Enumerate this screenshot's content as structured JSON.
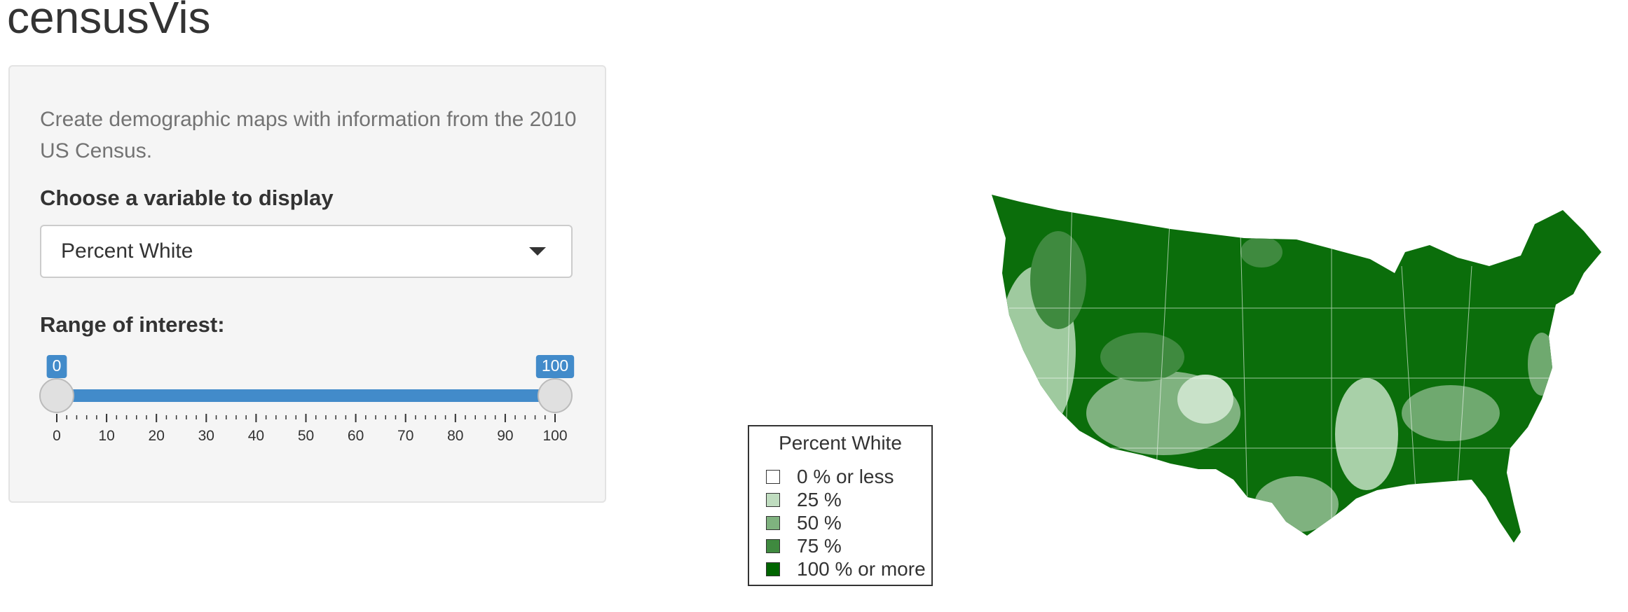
{
  "header": {
    "title": "censusVis"
  },
  "sidebar": {
    "help_text": "Create demographic maps with information from the 2010 US Census.",
    "select_label": "Choose a variable to display",
    "select_value": "Percent White",
    "slider_label": "Range of interest:",
    "slider_values": [
      0,
      100
    ],
    "slider_ticks": [
      0,
      10,
      20,
      30,
      40,
      50,
      60,
      70,
      80,
      90,
      100
    ]
  },
  "legend": {
    "title": "Percent White",
    "entries": [
      {
        "label": "0 % or less",
        "color": "#ffffff"
      },
      {
        "label": "25 %",
        "color": "#bfdcbf"
      },
      {
        "label": "50 %",
        "color": "#7fb27f"
      },
      {
        "label": "75 %",
        "color": "#3f8a3f"
      },
      {
        "label": "100 % or more",
        "color": "#006400"
      }
    ]
  }
}
